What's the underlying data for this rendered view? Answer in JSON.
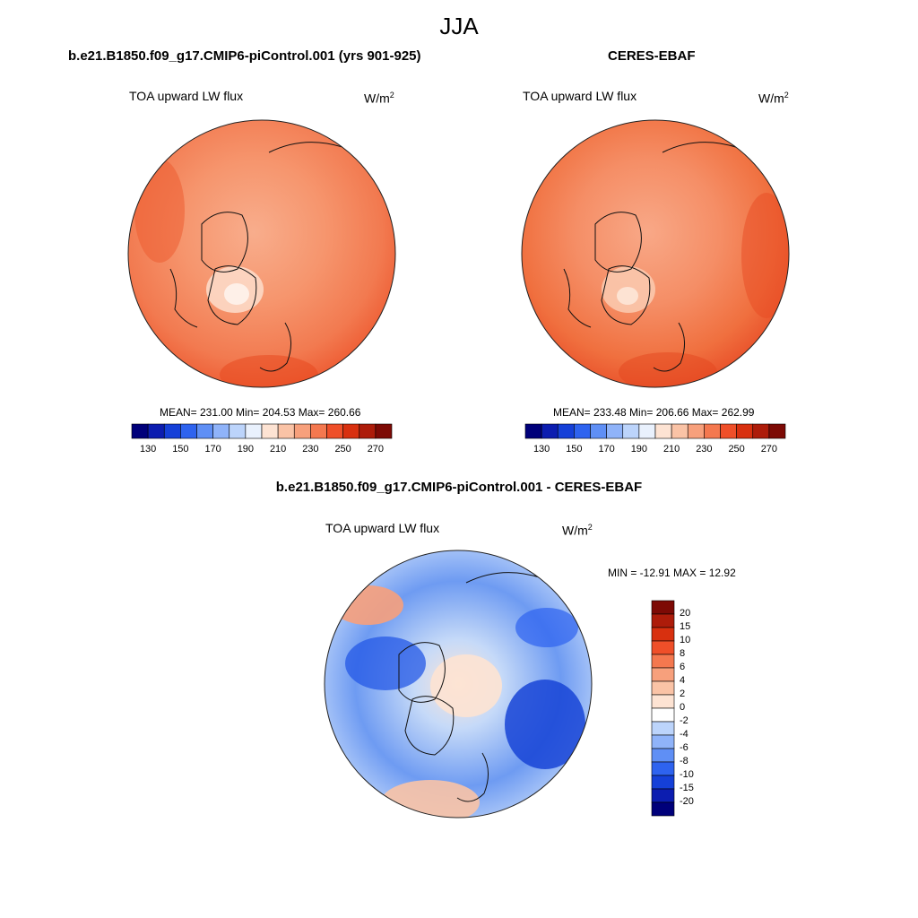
{
  "main_title": "JJA",
  "units": {
    "base": "W/m",
    "exp": "2"
  },
  "panels": [
    {
      "title": "b.e21.B1850.f09_g17.CMIP6-piControl.001 (yrs 901-925)",
      "variable": "TOA upward LW flux",
      "stats": "MEAN= 231.00  Min= 204.53  Max= 260.66",
      "mean": 231.0,
      "min": 204.53,
      "max": 260.66
    },
    {
      "title": "CERES-EBAF",
      "variable": "TOA upward LW flux",
      "stats": "MEAN= 233.48  Min= 206.66  Max= 262.99",
      "mean": 233.48,
      "min": 206.66,
      "max": 262.99
    }
  ],
  "horizontal_colorbar": {
    "colors": [
      "#00007a",
      "#0c1db0",
      "#1540d8",
      "#2e63ef",
      "#5f8ff5",
      "#8fb3f9",
      "#bcd4fb",
      "#e9f1fd",
      "#fde3d3",
      "#fac3a6",
      "#f7a07c",
      "#f4784f",
      "#ef4f29",
      "#d8300f",
      "#ad1c0a",
      "#7d0a05"
    ],
    "tick_labels": [
      "130",
      "150",
      "170",
      "190",
      "210",
      "230",
      "250",
      "270"
    ]
  },
  "difference": {
    "title": "b.e21.B1850.f09_g17.CMIP6-piControl.001 - CERES-EBAF",
    "variable": "TOA upward LW flux",
    "stats": "MIN = -12.91 MAX =  12.92",
    "min": -12.91,
    "max": 12.92,
    "colorbar": {
      "colors_top_to_bottom": [
        "#7d0a05",
        "#ad1c0a",
        "#d8300f",
        "#ef4f29",
        "#f4784f",
        "#f7a07c",
        "#fac3a6",
        "#fde3d3",
        "#ffffff",
        "#bcd4fb",
        "#8fb3f9",
        "#5f8ff5",
        "#2e63ef",
        "#1540d8",
        "#0c1db0",
        "#00007a"
      ],
      "tick_labels": [
        "20",
        "15",
        "10",
        "8",
        "6",
        "4",
        "2",
        "0",
        "-2",
        "-4",
        "-6",
        "-8",
        "-10",
        "-15",
        "-20"
      ]
    }
  }
}
